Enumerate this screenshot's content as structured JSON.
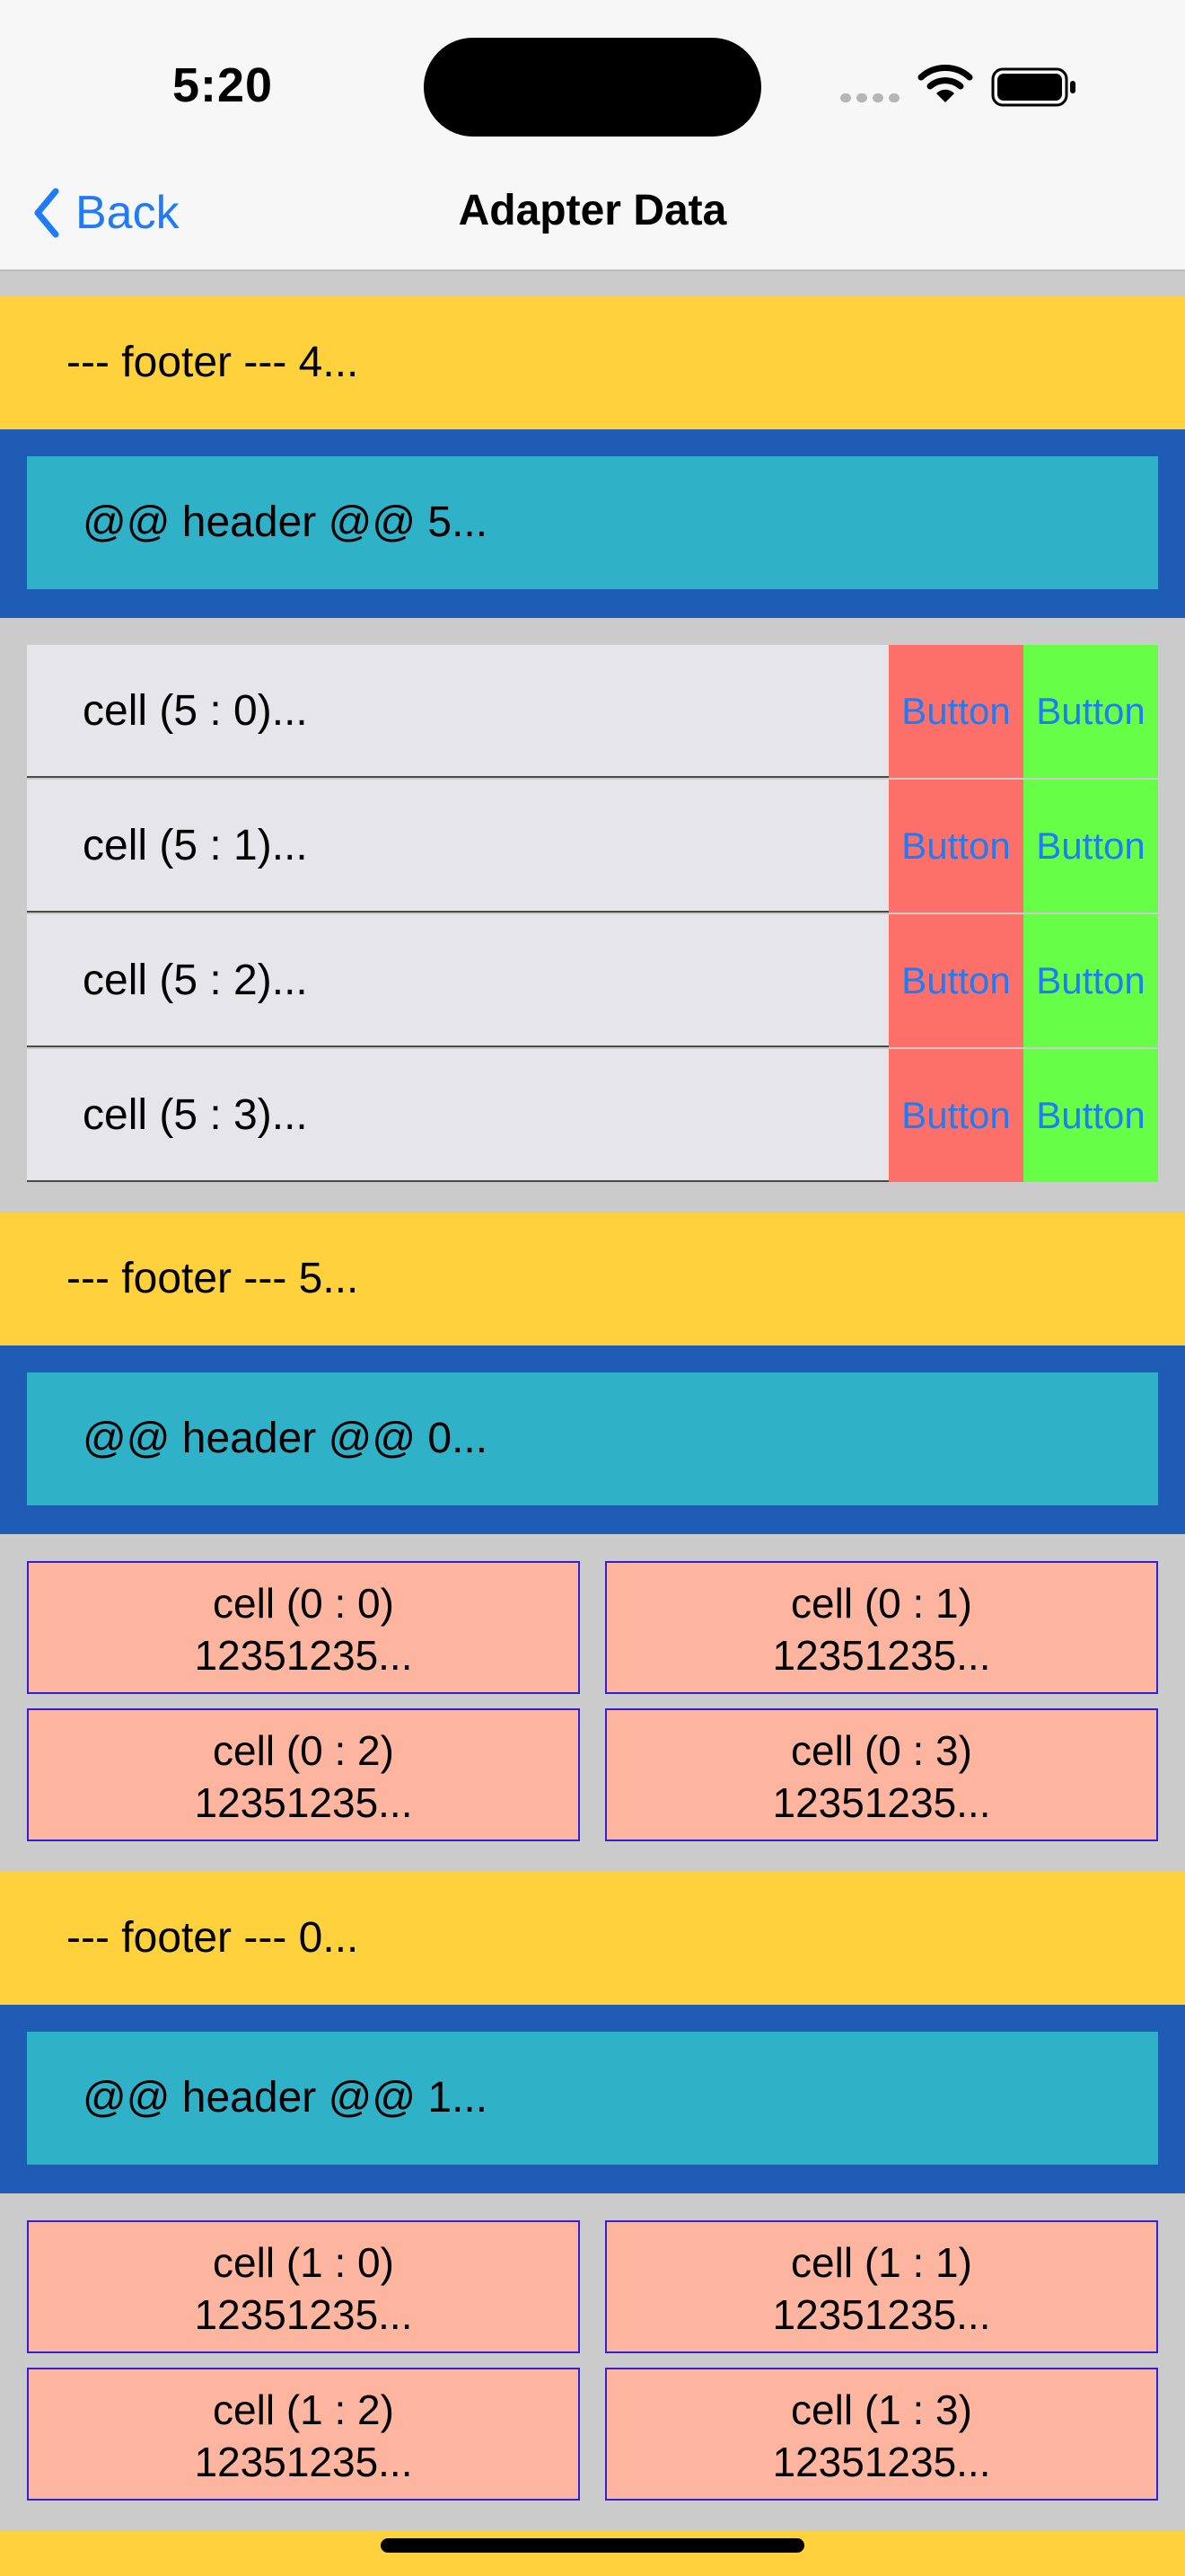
{
  "status": {
    "time": "5:20"
  },
  "nav": {
    "back_label": "Back",
    "title": "Adapter Data"
  },
  "footers": [
    "--- footer --- 4...",
    "--- footer --- 5...",
    "--- footer --- 0...",
    ""
  ],
  "headers": [
    "@@ header @@ 5...",
    "@@ header @@ 0...",
    "@@ header @@ 1..."
  ],
  "section5": {
    "rows": [
      {
        "label": "cell (5 : 0)...",
        "button_red": "Button",
        "button_green": "Button"
      },
      {
        "label": "cell (5 : 1)...",
        "button_red": "Button",
        "button_green": "Button"
      },
      {
        "label": "cell (5 : 2)...",
        "button_red": "Button",
        "button_green": "Button"
      },
      {
        "label": "cell (5 : 3)...",
        "button_red": "Button",
        "button_green": "Button"
      }
    ]
  },
  "section0": {
    "cells": [
      {
        "title": "cell (0 : 0)",
        "value": "12351235..."
      },
      {
        "title": "cell (0 : 1)",
        "value": "12351235..."
      },
      {
        "title": "cell (0 : 2)",
        "value": "12351235..."
      },
      {
        "title": "cell (0 : 3)",
        "value": "12351235..."
      }
    ]
  },
  "section1": {
    "cells": [
      {
        "title": "cell (1 : 0)",
        "value": "12351235..."
      },
      {
        "title": "cell (1 : 1)",
        "value": "12351235..."
      },
      {
        "title": "cell (1 : 2)",
        "value": "12351235..."
      },
      {
        "title": "cell (1 : 3)",
        "value": "12351235..."
      }
    ]
  },
  "colors": {
    "footer": "#fed13d",
    "header_band": "#1e5cb6",
    "header_inner": "#2fb1c7",
    "list_cell": "#e6e6ea",
    "red_button": "#fd7069",
    "green_button": "#66fe46",
    "grid_cell": "#fdb5a0",
    "grid_border": "#3020d8",
    "link": "#1f7bf6"
  },
  "icons": [
    "wifi-icon",
    "battery-icon",
    "chevron-left-icon"
  ]
}
